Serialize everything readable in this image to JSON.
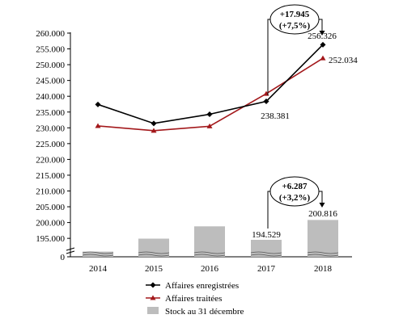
{
  "chart_data": {
    "type": "line",
    "categories": [
      "2014",
      "2015",
      "2016",
      "2017",
      "2018"
    ],
    "series": [
      {
        "name": "Affaires enregistrées",
        "type": "line",
        "color": "#000000",
        "marker": "diamond",
        "values": [
          237400,
          231400,
          234300,
          238381,
          256326
        ]
      },
      {
        "name": "Affaires traitées",
        "type": "line",
        "color": "#a3181b",
        "marker": "triangle",
        "values": [
          230600,
          229100,
          230500,
          240800,
          252034
        ]
      },
      {
        "name": "Stock au 31 décembre",
        "type": "bar",
        "color": "#bdbdbd",
        "values": [
          190800,
          194900,
          198800,
          194529,
          200816
        ]
      }
    ],
    "y_ticks": [
      "0",
      "195.000",
      "200.000",
      "205.000",
      "210.000",
      "215.000",
      "220.000",
      "225.000",
      "230.000",
      "235.000",
      "240.000",
      "245.000",
      "250.000",
      "255.000",
      "260.000"
    ],
    "ylim": [
      191000,
      260000
    ],
    "axis_break": true,
    "data_labels": [
      {
        "text": "256.326"
      },
      {
        "text": "252.034"
      },
      {
        "text": "238.381"
      },
      {
        "text": "194.529"
      },
      {
        "text": "200.816"
      }
    ],
    "annotations": [
      {
        "line1": "+17.945",
        "line2": "(+7,5%)"
      },
      {
        "line1": "+6.287",
        "line2": "(+3,2%)"
      }
    ],
    "legend_position": "bottom"
  }
}
